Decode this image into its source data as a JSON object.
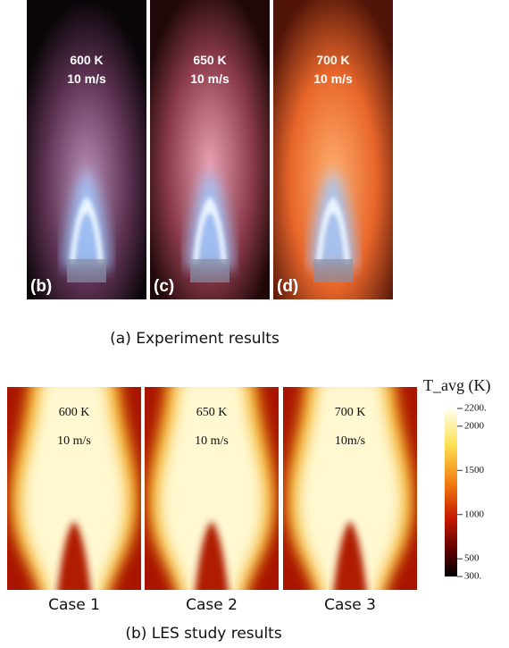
{
  "experiment": {
    "panels": [
      {
        "label": "(b)",
        "temperature": "600 K",
        "velocity": "10 m/s"
      },
      {
        "label": "(c)",
        "temperature": "650 K",
        "velocity": "10 m/s"
      },
      {
        "label": "(d)",
        "temperature": "700 K",
        "velocity": "10 m/s"
      }
    ],
    "caption": "(a) Experiment results"
  },
  "les": {
    "panels": [
      {
        "case": "Case 1",
        "temperature": "600 K",
        "velocity": "10 m/s"
      },
      {
        "case": "Case 2",
        "temperature": "650 K",
        "velocity": "10 m/s"
      },
      {
        "case": "Case 3",
        "temperature": "700 K",
        "velocity": "10m/s"
      }
    ],
    "caption": "(b) LES study results",
    "colorbar": {
      "title": "T_avg (K)",
      "lim": [
        300,
        2200
      ],
      "ticks": [
        {
          "value": 2200,
          "label": "2200."
        },
        2000,
        1500,
        1000,
        500,
        {
          "value": 300,
          "label": "300."
        }
      ]
    }
  }
}
